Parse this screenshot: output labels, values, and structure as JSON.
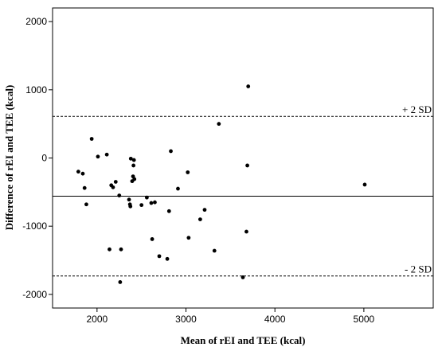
{
  "chart_data": {
    "type": "scatter",
    "title": "",
    "xlabel": "Mean of rEI and TEE (kcal)",
    "ylabel": "Difference of rEI and TEE (kcal)",
    "xlim": [
      1500,
      5780
    ],
    "ylim": [
      -2200,
      2200
    ],
    "x_ticks": [
      2000,
      3000,
      4000,
      5000
    ],
    "y_ticks": [
      2000,
      1000,
      0,
      -1000,
      -2000
    ],
    "grid": false,
    "reference_lines": [
      {
        "name": "mean",
        "y": -560,
        "style": "solid"
      },
      {
        "name": "upper",
        "y": 610,
        "style": "dashed",
        "label": "+ 2 SD"
      },
      {
        "name": "lower",
        "y": -1730,
        "style": "dashed",
        "label": "- 2 SD"
      }
    ],
    "points": [
      {
        "x": 1790,
        "y": -200
      },
      {
        "x": 1840,
        "y": -230
      },
      {
        "x": 1860,
        "y": -440
      },
      {
        "x": 1880,
        "y": -680
      },
      {
        "x": 1940,
        "y": 280
      },
      {
        "x": 2010,
        "y": 20
      },
      {
        "x": 2110,
        "y": 50
      },
      {
        "x": 2140,
        "y": -1340
      },
      {
        "x": 2160,
        "y": -400
      },
      {
        "x": 2180,
        "y": -430
      },
      {
        "x": 2210,
        "y": -350
      },
      {
        "x": 2250,
        "y": -550
      },
      {
        "x": 2260,
        "y": -1820
      },
      {
        "x": 2270,
        "y": -1340
      },
      {
        "x": 2360,
        "y": -610
      },
      {
        "x": 2370,
        "y": -680
      },
      {
        "x": 2375,
        "y": -710
      },
      {
        "x": 2380,
        "y": -10
      },
      {
        "x": 2395,
        "y": -340
      },
      {
        "x": 2405,
        "y": -270
      },
      {
        "x": 2410,
        "y": -110
      },
      {
        "x": 2415,
        "y": -30
      },
      {
        "x": 2420,
        "y": -310
      },
      {
        "x": 2500,
        "y": -690
      },
      {
        "x": 2560,
        "y": -580
      },
      {
        "x": 2610,
        "y": -660
      },
      {
        "x": 2620,
        "y": -1190
      },
      {
        "x": 2650,
        "y": -650
      },
      {
        "x": 2700,
        "y": -1440
      },
      {
        "x": 2790,
        "y": -1480
      },
      {
        "x": 2810,
        "y": -780
      },
      {
        "x": 2830,
        "y": 100
      },
      {
        "x": 2910,
        "y": -450
      },
      {
        "x": 3020,
        "y": -210
      },
      {
        "x": 3030,
        "y": -1170
      },
      {
        "x": 3160,
        "y": -900
      },
      {
        "x": 3210,
        "y": -760
      },
      {
        "x": 3320,
        "y": -1360
      },
      {
        "x": 3370,
        "y": 500
      },
      {
        "x": 3640,
        "y": -1750
      },
      {
        "x": 3680,
        "y": -1080
      },
      {
        "x": 3690,
        "y": -110
      },
      {
        "x": 3700,
        "y": 1050
      },
      {
        "x": 5010,
        "y": -390
      }
    ]
  }
}
